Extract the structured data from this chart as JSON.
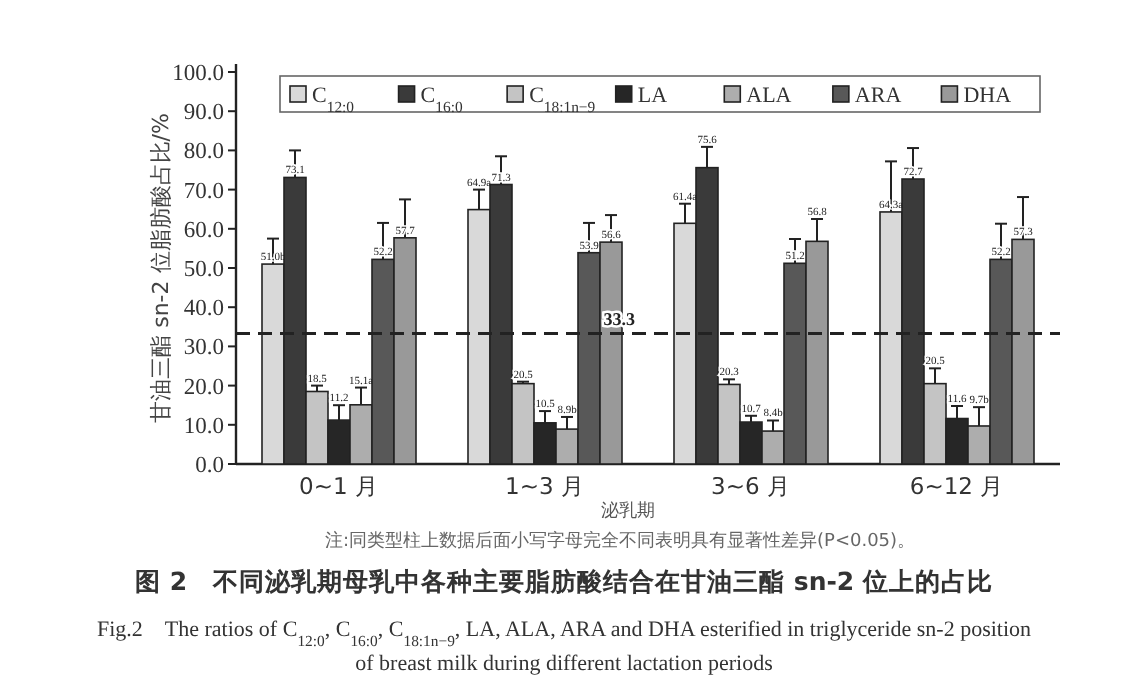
{
  "chart_data": {
    "type": "bar",
    "title": "图 2　不同泌乳期母乳中各种主要脂肪酸结合在甘油三酯 sn-2 位上的占比",
    "xlabel": "泌乳期",
    "ylabel": "甘油三酯 sn-2 位脂肪酸占比/%",
    "annotations": [
      "注:同类型柱上数据后面小写字母完全不同表明具有显著性差异(P<0.05)。",
      "Fig.2　The ratios of C$_{12:0}$, C$_{16:0}$, C$_{18:1n−9}$, LA, ALA, ARA and DHA esterified in triglyceride sn-2 position of breast milk during different lactation periods"
    ],
    "categories": [
      "0~1 月",
      "1~3 月",
      "3~6 月",
      "6~12 月"
    ],
    "series": [
      {
        "name": "C$_{12:0}$",
        "color": "#d9d9d9",
        "values": [
          51.0,
          64.9,
          61.4,
          64.3
        ],
        "value_labels": [
          "51.0b",
          "64.9a",
          "61.4a",
          "64.3a"
        ],
        "errors": [
          [
            51.0,
            57.5
          ],
          [
            64.9,
            70.0
          ],
          [
            61.4,
            66.4
          ],
          [
            64.3,
            77.2
          ]
        ]
      },
      {
        "name": "C$_{16:0}$",
        "color": "#3a3a3a",
        "values": [
          73.1,
          71.3,
          75.6,
          72.7
        ],
        "value_labels": [
          "73.1",
          "71.3",
          "75.6",
          "72.7"
        ],
        "errors": [
          [
            73.1,
            80.0
          ],
          [
            71.3,
            78.5
          ],
          [
            75.6,
            80.9
          ],
          [
            72.7,
            80.6
          ]
        ]
      },
      {
        "name": "C$_{18:1n−9}$",
        "color": "#c4c4c4",
        "values": [
          18.5,
          20.5,
          20.3,
          20.5
        ],
        "value_labels": [
          "18.5",
          "20.5",
          "20.3",
          "20.5"
        ],
        "errors": [
          [
            18.5,
            20.0
          ],
          [
            20.5,
            21.0
          ],
          [
            20.3,
            21.6
          ],
          [
            20.5,
            24.4
          ]
        ]
      },
      {
        "name": "LA",
        "color": "#262626",
        "values": [
          11.2,
          10.5,
          10.7,
          11.6
        ],
        "value_labels": [
          "11.2",
          "10.5",
          "10.7",
          "11.6"
        ],
        "errors": [
          [
            11.2,
            15.0
          ],
          [
            10.5,
            13.5
          ],
          [
            10.7,
            12.3
          ],
          [
            11.6,
            14.8
          ]
        ]
      },
      {
        "name": "ALA",
        "color": "#adadad",
        "values": [
          15.1,
          8.9,
          8.4,
          9.7
        ],
        "value_labels": [
          "15.1a",
          "8.9b",
          "8.4b",
          "9.7b"
        ],
        "errors": [
          [
            15.1,
            19.5
          ],
          [
            8.9,
            12.0
          ],
          [
            8.4,
            11.1
          ],
          [
            9.7,
            14.5
          ]
        ]
      },
      {
        "name": "ARA",
        "color": "#585858",
        "values": [
          52.2,
          53.9,
          51.2,
          52.2
        ],
        "value_labels": [
          "52.2",
          "53.9",
          "51.2",
          "52.2"
        ],
        "errors": [
          [
            52.2,
            61.5
          ],
          [
            53.9,
            61.5
          ],
          [
            51.2,
            57.4
          ],
          [
            52.2,
            61.3
          ]
        ]
      },
      {
        "name": "DHA",
        "color": "#999999",
        "values": [
          57.7,
          56.6,
          56.8,
          57.3
        ],
        "value_labels": [
          "57.7",
          "56.6",
          "56.8",
          "57.3"
        ],
        "errors": [
          [
            57.7,
            67.5
          ],
          [
            56.6,
            63.5
          ],
          [
            56.8,
            62.5
          ],
          [
            57.3,
            68.1
          ]
        ]
      }
    ],
    "ylim": [
      0,
      100
    ],
    "yticks": [
      {
        "value": 0,
        "label": "0.0"
      },
      {
        "value": 10,
        "label": "10.0"
      },
      {
        "value": 20,
        "label": "20.0"
      },
      {
        "value": 30,
        "label": "30.0"
      },
      {
        "value": 40,
        "label": "40.0"
      },
      {
        "value": 50,
        "label": "50.0"
      },
      {
        "value": 60,
        "label": "60.0"
      },
      {
        "value": 70,
        "label": "70.0"
      },
      {
        "value": 80,
        "label": "80.0"
      },
      {
        "value": 90,
        "label": "90.0"
      },
      {
        "value": 100,
        "label": "100.0"
      }
    ],
    "ref_lines": [
      {
        "axis": "y",
        "value": 33.3,
        "label": "33.3",
        "line_style": "dashed"
      }
    ],
    "legend": "top",
    "grid": false
  }
}
